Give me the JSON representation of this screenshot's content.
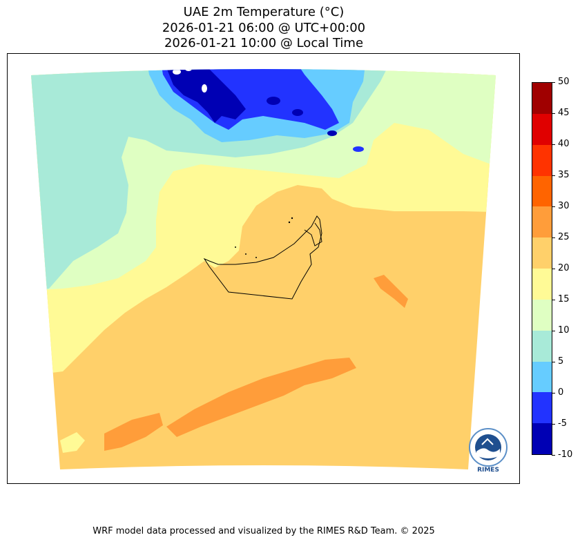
{
  "title": {
    "line1": "UAE 2m Temperature (°C)",
    "line2": "2026-01-21 06:00 @ UTC+00:00",
    "line3": "2026-01-21 10:00 @ Local Time"
  },
  "colorbar": {
    "ticks": [
      "50",
      "45",
      "40",
      "35",
      "30",
      "25",
      "20",
      "15",
      "10",
      "5",
      "0",
      "-5",
      "-10"
    ],
    "bands": [
      {
        "range": "45 to 50",
        "color": "#a00000"
      },
      {
        "range": "40 to 45",
        "color": "#e00000"
      },
      {
        "range": "35 to 40",
        "color": "#ff3300"
      },
      {
        "range": "30 to 35",
        "color": "#ff6400"
      },
      {
        "range": "25 to 30",
        "color": "#ff9d3a"
      },
      {
        "range": "20 to 25",
        "color": "#ffd06a"
      },
      {
        "range": "15 to 20",
        "color": "#fffa96"
      },
      {
        "range": "10 to 15",
        "color": "#dfffc2"
      },
      {
        "range": "5 to 10",
        "color": "#a8ead8"
      },
      {
        "range": "0 to 5",
        "color": "#66ccff"
      },
      {
        "range": "-5 to 0",
        "color": "#2233ff"
      },
      {
        "range": "-10 to -5",
        "color": "#0000b4"
      }
    ]
  },
  "logo": {
    "text": "RIMES"
  },
  "footer": "WRF model data processed and visualized by the RIMES R&D Team. © 2025"
}
